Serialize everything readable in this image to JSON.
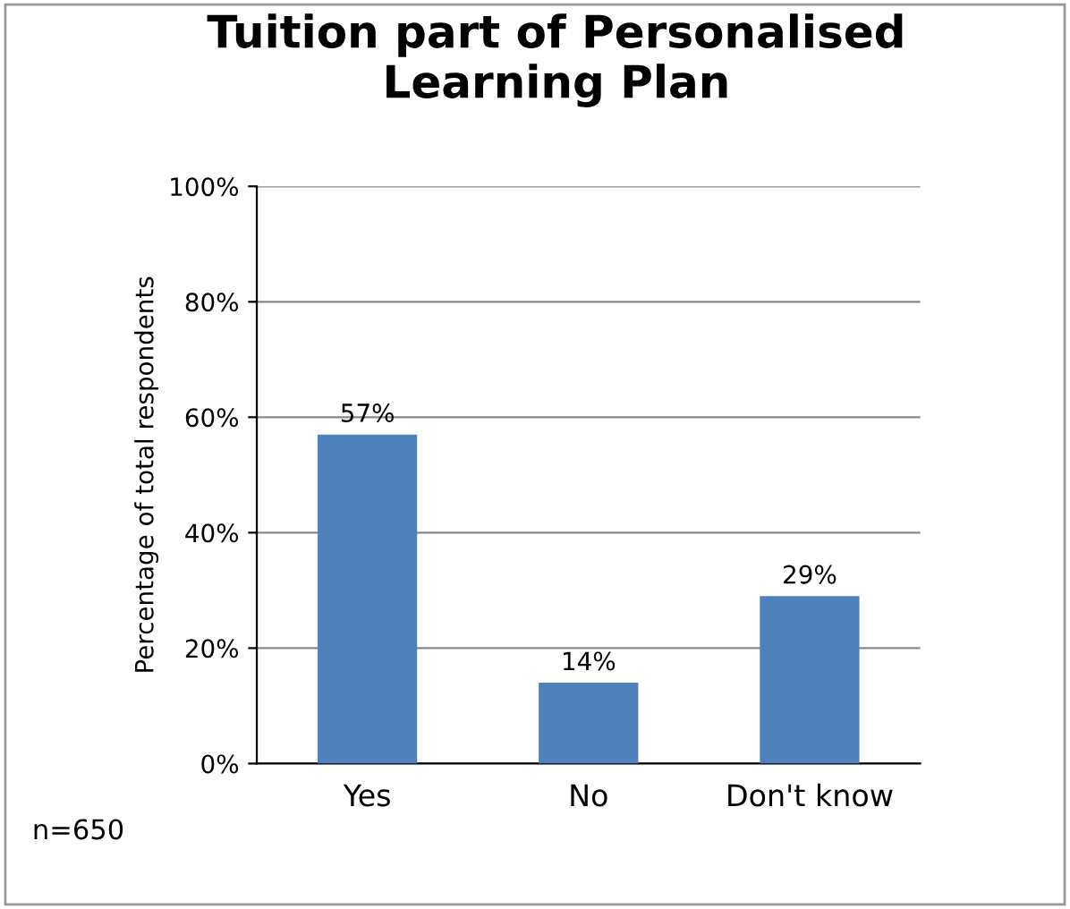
{
  "chart_data": {
    "type": "bar",
    "title": "Tuition part of Personalised\nLearning Plan",
    "ylabel": "Percentage of total respondents",
    "categories": [
      "Yes",
      "No",
      "Don't know"
    ],
    "values": [
      57,
      14,
      29
    ],
    "value_labels": [
      "57%",
      "14%",
      "29%"
    ],
    "color": "#4f81bd",
    "ylim": [
      0,
      100
    ],
    "yticks": [
      {
        "value": 0,
        "label": "0%"
      },
      {
        "value": 20,
        "label": "20%"
      },
      {
        "value": 40,
        "label": "40%"
      },
      {
        "value": 60,
        "label": "60%"
      },
      {
        "value": 80,
        "label": "80%"
      },
      {
        "value": 100,
        "label": "100%"
      }
    ],
    "grid": "y",
    "legend": false,
    "annotations": [
      "n=650"
    ]
  }
}
